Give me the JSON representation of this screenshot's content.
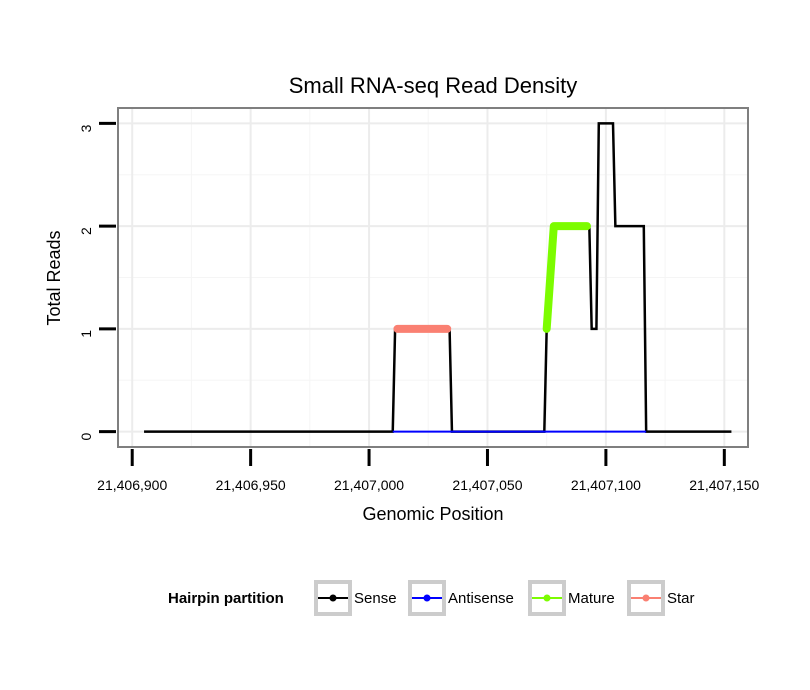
{
  "chart_data": {
    "type": "line",
    "title": "Small RNA-seq Read Density",
    "xlabel": "Genomic Position",
    "ylabel": "Total Reads",
    "xlim": [
      21406894,
      21407160
    ],
    "ylim": [
      -0.15,
      3.15
    ],
    "x_ticks": [
      21406900,
      21406950,
      21407000,
      21407050,
      21407100,
      21407150
    ],
    "x_tick_labels": [
      "21,406,900",
      "21,406,950",
      "21,407,000",
      "21,407,050",
      "21,407,100",
      "21,407,150"
    ],
    "y_ticks": [
      0,
      1,
      2,
      3
    ],
    "y_tick_labels": [
      "0",
      "1",
      "2",
      "3"
    ],
    "grid": true,
    "legend": {
      "position": "bottom",
      "title": "Hairpin partition",
      "entries": [
        "Sense",
        "Antisense",
        "Mature",
        "Star"
      ]
    },
    "series": [
      {
        "name": "Sense",
        "color": "#000000",
        "style": "line",
        "points": [
          [
            21406905,
            0
          ],
          [
            21407010,
            0
          ],
          [
            21407011,
            1
          ],
          [
            21407034,
            1
          ],
          [
            21407035,
            0
          ],
          [
            21407074,
            0
          ],
          [
            21407075,
            1
          ],
          [
            21407077,
            2
          ],
          [
            21407093,
            2
          ],
          [
            21407094,
            1
          ],
          [
            21407096,
            1
          ],
          [
            21407097,
            3
          ],
          [
            21407103,
            3
          ],
          [
            21407104,
            2
          ],
          [
            21407116,
            2
          ],
          [
            21407117,
            0
          ],
          [
            21407153,
            0
          ]
        ]
      },
      {
        "name": "Antisense",
        "color": "#0000ff",
        "style": "line",
        "points": [
          [
            21407010,
            0
          ],
          [
            21407035,
            0
          ],
          [
            21407074,
            0
          ],
          [
            21407117,
            0
          ]
        ]
      },
      {
        "name": "Mature",
        "color": "#7cfc00",
        "style": "thick",
        "points": [
          [
            21407075,
            1
          ],
          [
            21407078,
            2
          ],
          [
            21407092,
            2
          ]
        ]
      },
      {
        "name": "Star",
        "color": "#fa8072",
        "style": "thick",
        "points": [
          [
            21407012,
            1
          ],
          [
            21407033,
            1
          ]
        ]
      }
    ]
  }
}
